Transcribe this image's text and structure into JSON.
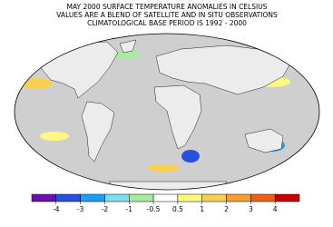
{
  "map": {
    "title_lines": [
      "MAY 2000 SURFACE TEMPERATURE ANOMALIES IN CELSIUS",
      "VALUES ARE A BLEND OF SATELLITE AND IN SITU OBSERVATIONS",
      "CLIMATOLOGICAL BASE PERIOD IS 1992 - 2000"
    ],
    "colorbar": {
      "colors": [
        "#6a10b0",
        "#2850e0",
        "#1aa0f0",
        "#80dcf0",
        "#a8eca0",
        "#ffffff",
        "#fff880",
        "#f8d050",
        "#f4a030",
        "#ec6018",
        "#c80000"
      ],
      "ticks": [
        -4,
        -3,
        -2,
        -1,
        -0.5,
        0.5,
        1,
        2,
        3,
        4
      ]
    }
  }
}
